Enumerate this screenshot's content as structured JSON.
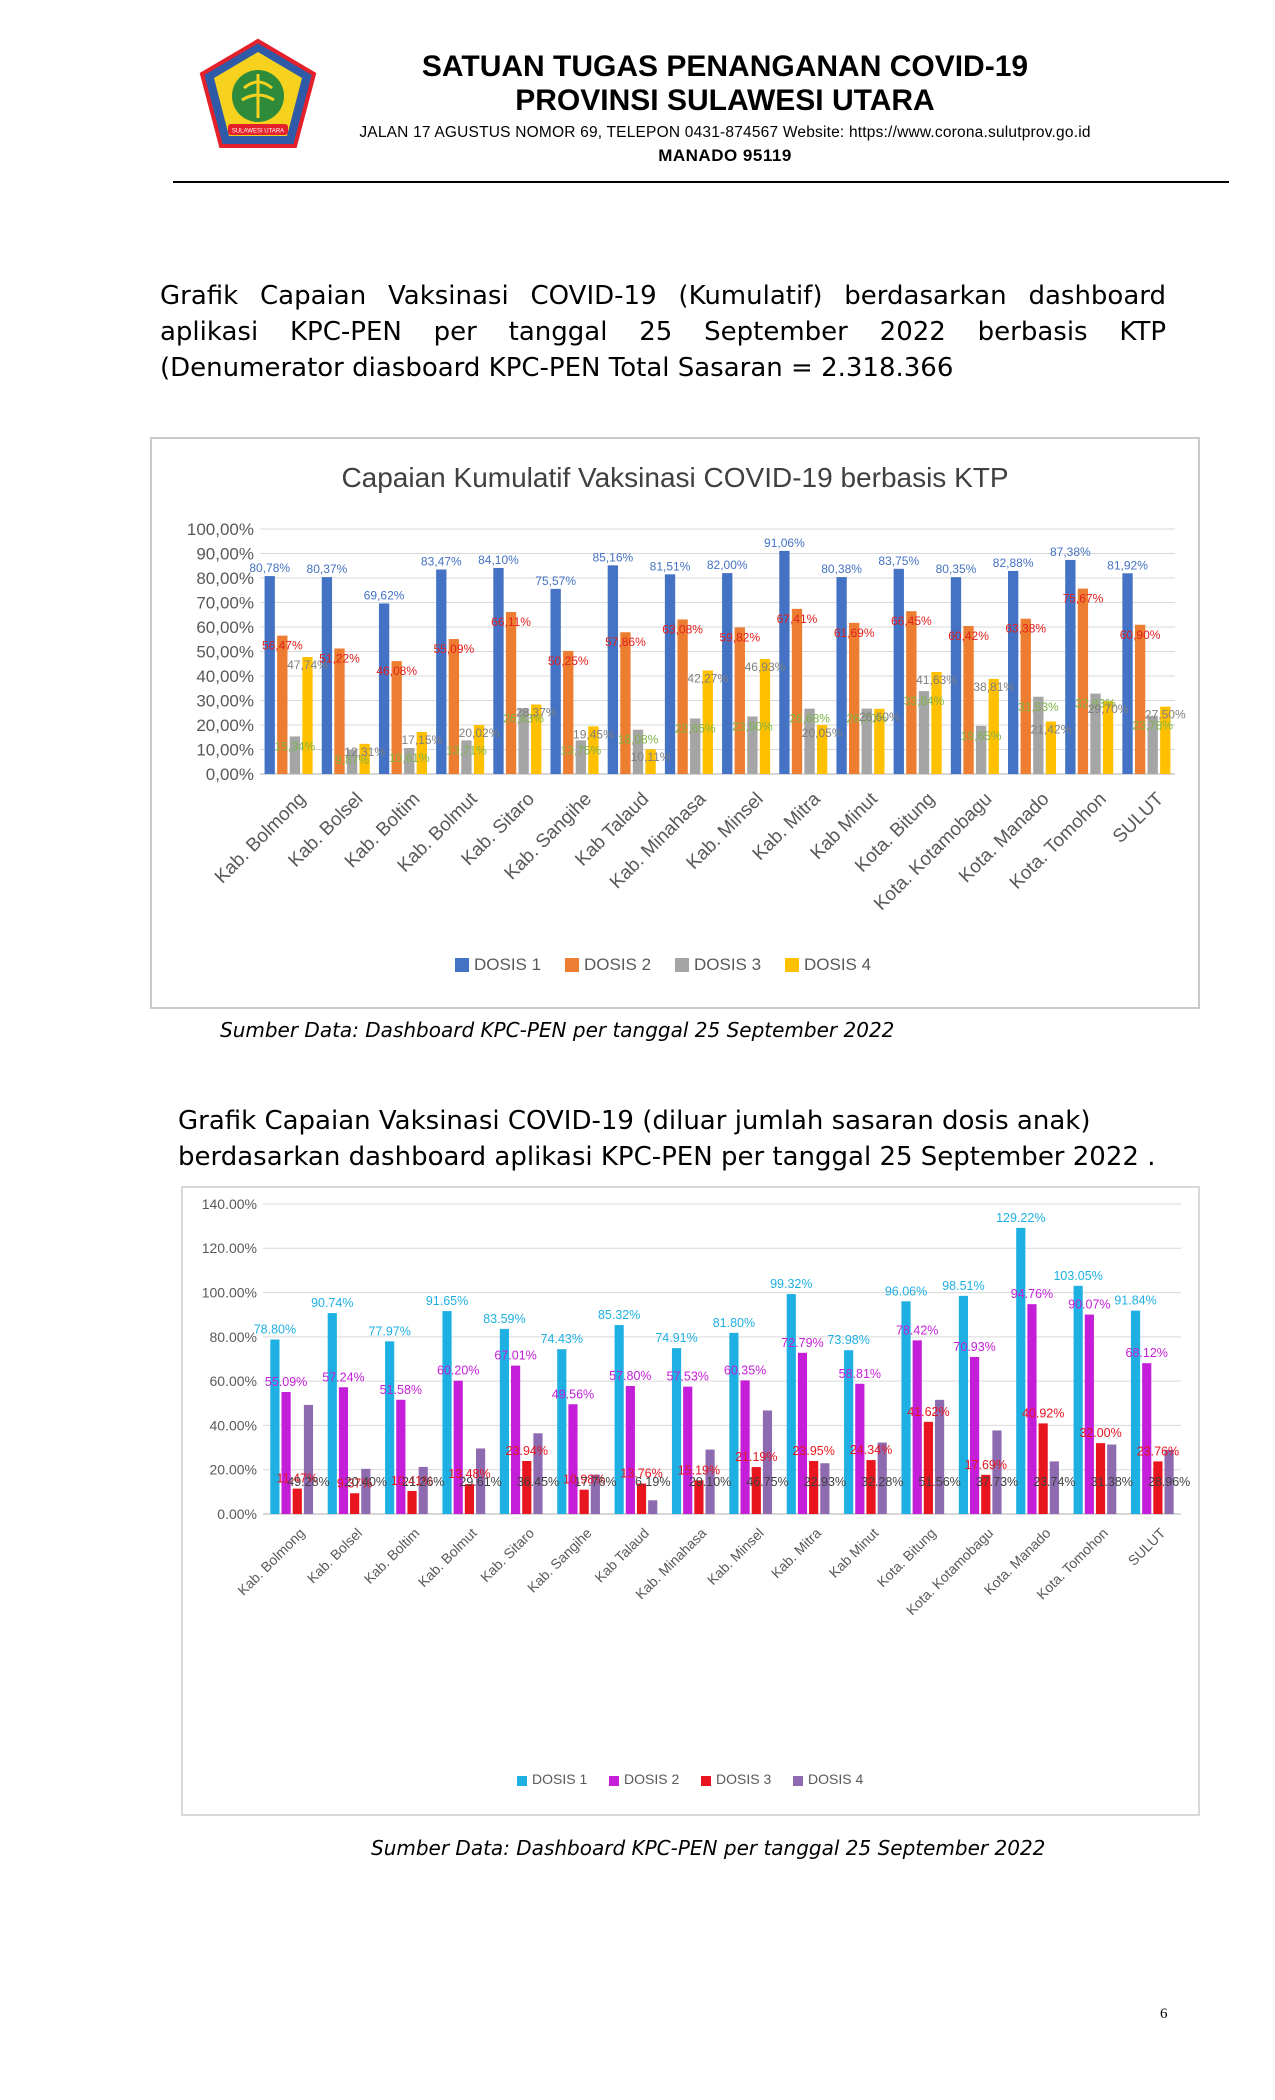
{
  "letterhead": {
    "org_title": "SATUAN TUGAS PENANGANAN COVID-19",
    "province": "PROVINSI SULAWESI UTARA",
    "address": "JALAN 17 AGUSTUS NOMOR 69, TELEPON 0431-874567 Website: https://www.corona.sulutprov.go.id",
    "city": "MANADO 95119",
    "logo_text": "SULAWESI UTARA"
  },
  "paragraph1": "Grafik Capaian Vaksinasi COVID-19 (Kumulatif) berdasarkan dashboard aplikasi KPC-PEN per tanggal 25 September 2022 berbasis KTP (Denumerator diasboard KPC-PEN Total Sasaran = 2.318.366",
  "source1": "Sumber Data: Dashboard KPC-PEN per tanggal 25 September 2022",
  "paragraph2": "Grafik Capaian Vaksinasi COVID-19 (diluar jumlah sasaran dosis anak) berdasarkan dashboard aplikasi KPC-PEN per tanggal 25 September 2022 .",
  "source2": "Sumber Data: Dashboard KPC-PEN per tanggal 25 September 2022",
  "page_number": "6",
  "chart_data": [
    {
      "type": "bar",
      "title": "Capaian Kumulatif Vaksinasi COVID-19 berbasis KTP",
      "categories": [
        "Kab. Bolmong",
        "Kab. Bolsel",
        "Kab. Boltim",
        "Kab. Bolmut",
        "Kab. Sitaro",
        "Kab. Sangihe",
        "Kab Talaud",
        "Kab. Minahasa",
        "Kab. Minsel",
        "Kab. Mitra",
        "Kab Minut",
        "Kota. Bitung",
        "Kota. Kotamobagu",
        "Kota. Manado",
        "Kota. Tomohon",
        "SULUT"
      ],
      "ylim": [
        0,
        100
      ],
      "yticks": [
        "0,00%",
        "10,00%",
        "20,00%",
        "30,00%",
        "40,00%",
        "50,00%",
        "60,00%",
        "70,00%",
        "80,00%",
        "90,00%",
        "100,00%"
      ],
      "legend": "bottom",
      "grid": true,
      "series": [
        {
          "name": "DOSIS 1",
          "color": "#4472C4",
          "values": [
            80.78,
            80.37,
            69.62,
            83.47,
            84.1,
            75.57,
            85.16,
            81.51,
            82.0,
            91.06,
            80.38,
            83.75,
            80.35,
            82.88,
            87.38,
            81.92
          ],
          "labels": [
            "80,78%",
            "80,37%",
            "69,62%",
            "83,47%",
            "84,10%",
            "75,57%",
            "85,16%",
            "81,51%",
            "82,00%",
            "91,06%",
            "80,38%",
            "83,75%",
            "80,35%",
            "82,88%",
            "87,38%",
            "81,92%"
          ]
        },
        {
          "name": "DOSIS 2",
          "color": "#ED7D31",
          "values": [
            56.47,
            51.22,
            46.08,
            55.09,
            66.11,
            50.25,
            57.86,
            63.08,
            59.82,
            67.41,
            61.69,
            66.45,
            60.42,
            63.38,
            75.67,
            60.9
          ],
          "labels": [
            "56,47%",
            "51,22%",
            "46,08%",
            "55,09%",
            "66,11%",
            "50,25%",
            "57,86%",
            "63,08%",
            "59,82%",
            "67,41%",
            "61,69%",
            "66,45%",
            "60,42%",
            "63,38%",
            "75,67%",
            "60,90%"
          ]
        },
        {
          "name": "DOSIS 3",
          "color": "#A5A5A5",
          "values": [
            15.34,
            9.87,
            10.61,
            13.71,
            26.83,
            13.75,
            18.08,
            22.65,
            23.5,
            26.68,
            26.7,
            33.84,
            19.65,
            31.53,
            32.83,
            23.78
          ],
          "labels": [
            "15,34%",
            "9,87%",
            "10,61%",
            "13,71%",
            "26,83%",
            "13,75%",
            "18,08%",
            "22,65%",
            "23,50%",
            "26,68%",
            "26,70%",
            "33,84%",
            "19,65%",
            "31,53%",
            "32,83%",
            "23,78%"
          ]
        },
        {
          "name": "DOSIS 4",
          "color": "#FFC000",
          "values": [
            47.74,
            12.31,
            17.15,
            20.02,
            28.37,
            19.45,
            10.11,
            42.27,
            46.93,
            20.05,
            26.6,
            41.63,
            38.81,
            21.42,
            29.7,
            27.5
          ],
          "labels": [
            "47,74%",
            "12,31%",
            "17,15%",
            "20,02%",
            "28,37%",
            "19,45%",
            "10,11%",
            "42,27%",
            "46,93%",
            "20,05%",
            "26,60%",
            "41,63%",
            "38,81%",
            "21,42%",
            "29,70%",
            "27,50%"
          ]
        }
      ]
    },
    {
      "type": "bar",
      "title": "",
      "categories": [
        "Kab. Bolmong",
        "Kab. Bolsel",
        "Kab. Boltim",
        "Kab. Bolmut",
        "Kab. Sitaro",
        "Kab. Sangihe",
        "Kab Talaud",
        "Kab. Minahasa",
        "Kab. Minsel",
        "Kab. Mitra",
        "Kab Minut",
        "Kota. Bitung",
        "Kota. Kotamobagu",
        "Kota. Manado",
        "Kota. Tomohon",
        "SULUT"
      ],
      "ylim": [
        0,
        140
      ],
      "yticks": [
        "0.00%",
        "20.00%",
        "40.00%",
        "60.00%",
        "80.00%",
        "100.00%",
        "120.00%",
        "140.00%"
      ],
      "legend": "bottom",
      "grid": true,
      "series": [
        {
          "name": "DOSIS 1",
          "color": "#1FB0E3",
          "values": [
            78.8,
            90.74,
            77.97,
            91.65,
            83.59,
            74.43,
            85.32,
            74.91,
            81.8,
            99.32,
            73.98,
            96.06,
            98.51,
            129.22,
            103.05,
            91.84
          ],
          "labels": [
            "78.80%",
            "90.74%",
            "77.97%",
            "91.65%",
            "83.59%",
            "74.43%",
            "85.32%",
            "74.91%",
            "81.80%",
            "99.32%",
            "73.98%",
            "96.06%",
            "98.51%",
            "129.22%",
            "103.05%",
            "91.84%"
          ]
        },
        {
          "name": "DOSIS 2",
          "color": "#C51ED8",
          "values": [
            55.09,
            57.24,
            51.58,
            60.2,
            67.01,
            49.56,
            57.8,
            57.53,
            60.35,
            72.79,
            58.81,
            78.42,
            70.93,
            94.76,
            90.07,
            68.12
          ],
          "labels": [
            "55.09%",
            "57.24%",
            "51.58%",
            "60.20%",
            "67.01%",
            "49.56%",
            "57.80%",
            "57.53%",
            "60.35%",
            "72.79%",
            "58.81%",
            "78.42%",
            "70.93%",
            "94.76%",
            "90.07%",
            "68.12%"
          ]
        },
        {
          "name": "DOSIS 3",
          "color": "#E8141E",
          "values": [
            11.47,
            9.37,
            10.41,
            13.48,
            23.94,
            10.98,
            13.76,
            15.19,
            21.19,
            23.95,
            24.34,
            41.62,
            17.69,
            40.92,
            32.0,
            23.76
          ],
          "labels": [
            "11.47%",
            "9.37%",
            "10.41%",
            "13.48%",
            "23.94%",
            "10.98%",
            "13.76%",
            "15.19%",
            "21.19%",
            "23.95%",
            "24.34%",
            "41.62%",
            "17.69%",
            "40.92%",
            "32.00%",
            "23.76%"
          ]
        },
        {
          "name": "DOSIS 4",
          "color": "#8E6BB0",
          "values": [
            49.28,
            20.4,
            21.26,
            29.61,
            36.45,
            17.76,
            6.19,
            29.1,
            46.75,
            22.93,
            32.28,
            51.56,
            37.73,
            23.74,
            31.38,
            28.96
          ],
          "labels": [
            "49.28%",
            "20.40%",
            "21.26%",
            "29.61%",
            "36.45%",
            "17.76%",
            "6.19%",
            "29.10%",
            "46.75%",
            "22.93%",
            "32.28%",
            "51.56%",
            "37.73%",
            "23.74%",
            "31.38%",
            "28.96%"
          ]
        }
      ]
    }
  ]
}
